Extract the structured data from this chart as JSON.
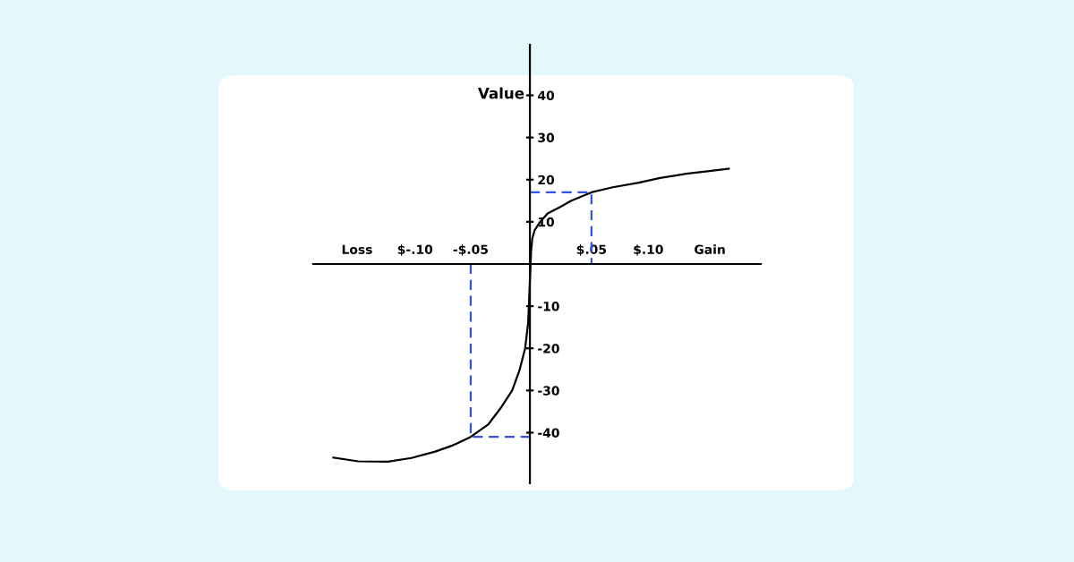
{
  "chart_data": {
    "type": "line",
    "ylabel": "Value",
    "xlim": [
      -0.183,
      0.195
    ],
    "ylim": [
      -52,
      52
    ],
    "xticks": [
      {
        "value": -0.146,
        "label": "Loss"
      },
      {
        "value": -0.097,
        "label": "$-.10"
      },
      {
        "value": -0.05,
        "label": "-$.05"
      },
      {
        "value": 0.052,
        "label": "$.05"
      },
      {
        "value": 0.1,
        "label": "$.10"
      },
      {
        "value": 0.152,
        "label": "Gain"
      }
    ],
    "yticks": [
      {
        "value": -40,
        "label": "-40"
      },
      {
        "value": -30,
        "label": "-30"
      },
      {
        "value": -20,
        "label": "-20"
      },
      {
        "value": -10,
        "label": "-10"
      },
      10,
      20,
      30,
      40
    ],
    "grid": false,
    "legend": false,
    "series": [
      {
        "color": "#000000",
        "line_style": "solid",
        "x": [
          -0.166,
          -0.145,
          -0.12,
          -0.1,
          -0.08,
          -0.065,
          -0.05,
          -0.035,
          -0.024,
          -0.015,
          -0.009,
          -0.004,
          -0.0015,
          0,
          0.001,
          0.002,
          0.004,
          0.0086,
          0.015,
          0.026,
          0.035,
          0.052,
          0.07,
          0.092,
          0.11,
          0.132,
          0.15,
          0.168
        ],
        "values": [
          -45.9,
          -46.8,
          -46.9,
          -46,
          -44.5,
          -43,
          -41,
          -38,
          -33.9,
          -30,
          -25.4,
          -20,
          -14,
          -4,
          3,
          6,
          8,
          10,
          12,
          13.6,
          15,
          17,
          18.2,
          19.3,
          20.4,
          21.4,
          22,
          22.6
        ]
      },
      {
        "color": "#3355dd",
        "line_style": "dashed",
        "x": [
          0,
          0.052,
          0.052
        ],
        "values": [
          17,
          17,
          0
        ]
      },
      {
        "color": "#3355dd",
        "line_style": "dashed",
        "x": [
          -0.05,
          -0.05,
          0
        ],
        "values": [
          0,
          -41,
          -41
        ]
      }
    ]
  }
}
